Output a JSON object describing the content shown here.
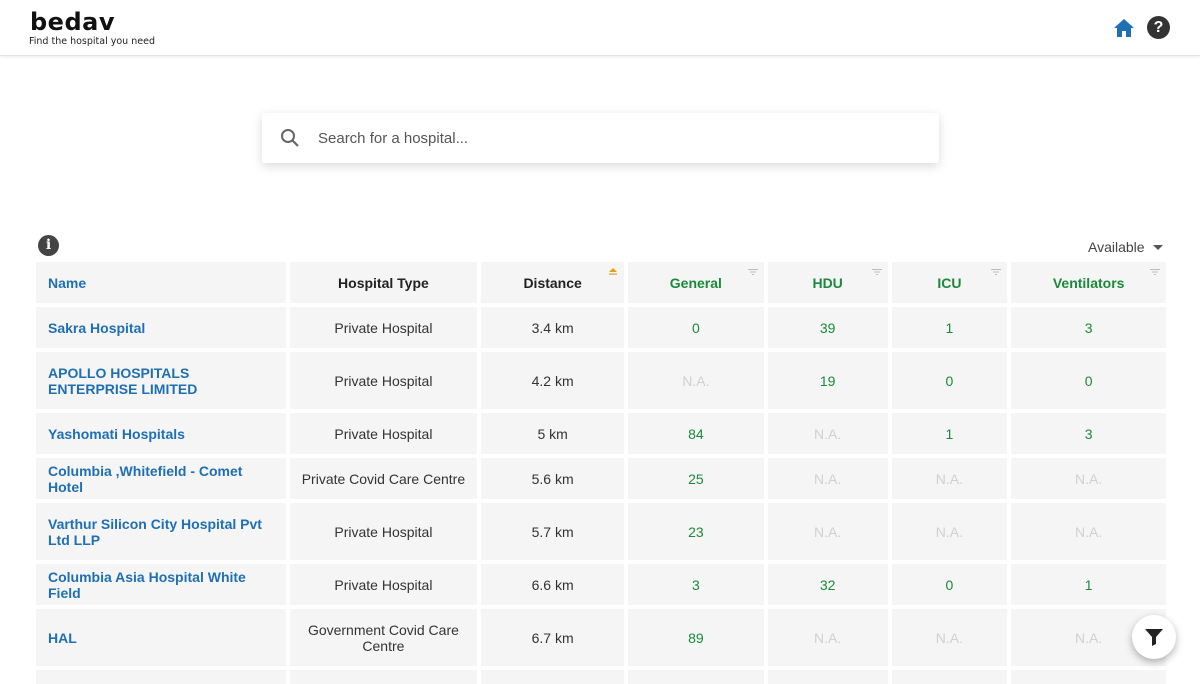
{
  "brand": {
    "name": "bedav",
    "tagline": "Find the hospital you need"
  },
  "header": {
    "home_icon": "home-icon",
    "help_icon": "help-icon",
    "accent": "#1f6fb5"
  },
  "search": {
    "placeholder": "Search for a hospital...",
    "value": ""
  },
  "filter": {
    "selected": "Available"
  },
  "table": {
    "columns": [
      "Name",
      "Hospital Type",
      "Distance",
      "General",
      "HDU",
      "ICU",
      "Ventilators"
    ],
    "sorted_column": "Distance",
    "rows": [
      {
        "name": "Sakra Hospital",
        "type": "Private Hospital",
        "distance": "3.4 km",
        "general": "0",
        "hdu": "39",
        "icu": "1",
        "ventilators": "3"
      },
      {
        "name": "APOLLO HOSPITALS ENTERPRISE LIMITED",
        "type": "Private Hospital",
        "distance": "4.2 km",
        "general": "N.A.",
        "hdu": "19",
        "icu": "0",
        "ventilators": "0"
      },
      {
        "name": "Yashomati Hospitals",
        "type": "Private Hospital",
        "distance": "5 km",
        "general": "84",
        "hdu": "N.A.",
        "icu": "1",
        "ventilators": "3"
      },
      {
        "name": "Columbia ,Whitefield - Comet Hotel",
        "type": "Private Covid Care Centre",
        "distance": "5.6 km",
        "general": "25",
        "hdu": "N.A.",
        "icu": "N.A.",
        "ventilators": "N.A."
      },
      {
        "name": "Varthur Silicon City Hospital Pvt Ltd LLP",
        "type": "Private Hospital",
        "distance": "5.7 km",
        "general": "23",
        "hdu": "N.A.",
        "icu": "N.A.",
        "ventilators": "N.A."
      },
      {
        "name": "Columbia Asia Hospital White Field",
        "type": "Private Hospital",
        "distance": "6.6 km",
        "general": "3",
        "hdu": "32",
        "icu": "0",
        "ventilators": "1"
      },
      {
        "name": "HAL",
        "type": "Government Covid Care Centre",
        "distance": "6.7 km",
        "general": "89",
        "hdu": "N.A.",
        "icu": "N.A.",
        "ventilators": "N.A."
      }
    ]
  },
  "colors": {
    "link": "#1f6fb5",
    "available": "#1a8a3a",
    "na": "#d0d0d0",
    "sort_active": "#e0a020"
  }
}
